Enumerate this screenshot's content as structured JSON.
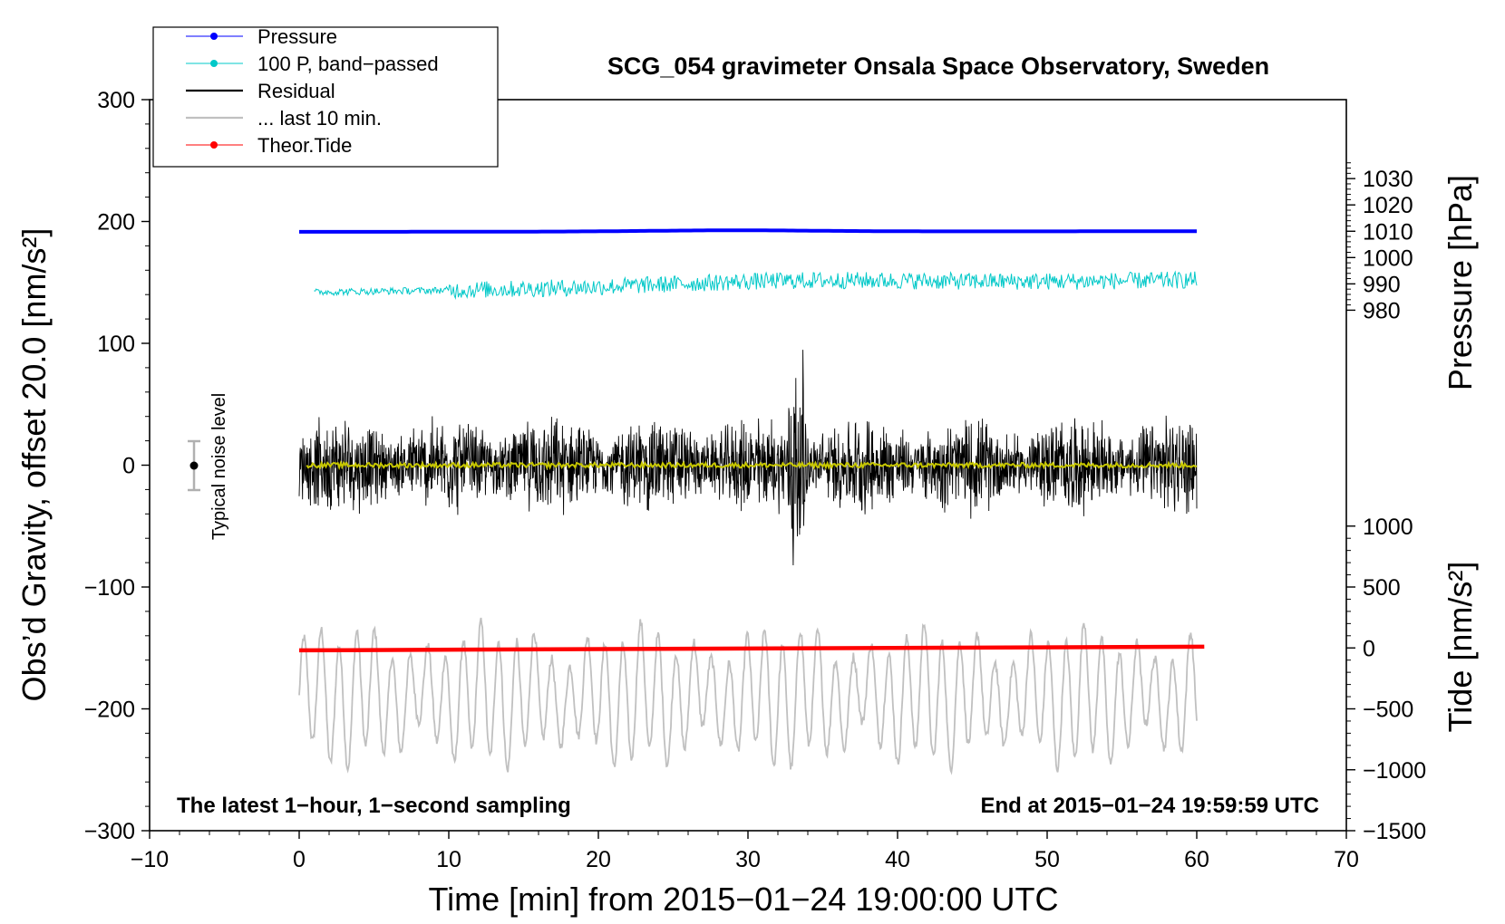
{
  "chart_data": {
    "type": "line",
    "title": "SCG_054 gravimeter Onsala Space Observatory, Sweden",
    "xlabel": "Time [min] from 2015−01−24 19:00:00 UTC",
    "ylabel": "Obs’d Gravity, offset 20.0 [nm/s²]",
    "y2label_pressure": "Pressure [hPa]",
    "y2label_tide": "Tide [nm/s²]",
    "xlim": [
      -10,
      70
    ],
    "ylim": [
      -300,
      300
    ],
    "xticks": [
      -10,
      0,
      10,
      20,
      30,
      40,
      50,
      60,
      70
    ],
    "xtick_labels": [
      "−10",
      "0",
      "10",
      "20",
      "30",
      "40",
      "50",
      "60",
      "70"
    ],
    "yticks": [
      300,
      200,
      100,
      0,
      -100,
      -200,
      -300
    ],
    "ytick_labels": [
      "300",
      "200",
      "100",
      "0",
      "−100",
      "−200",
      "−300"
    ],
    "pressure_axis": {
      "ticks": [
        980,
        990,
        1000,
        1010,
        1020,
        1030
      ],
      "labels": [
        "980",
        "990",
        "1000",
        "1010",
        "1020",
        "1030"
      ],
      "left_value_at": [
        1010,
        192
      ],
      "left_per_hpa": 2.16
    },
    "tide_axis": {
      "ticks": [
        1000,
        500,
        0,
        -500,
        -1000,
        -1500
      ],
      "labels": [
        "1000",
        "500",
        "0",
        "−500",
        "−1000",
        "−1500"
      ],
      "left_value_at": [
        0,
        -150
      ],
      "left_per_unit": 0.1
    },
    "legend": {
      "placement": "top-left",
      "entries": [
        {
          "label": "Pressure",
          "color": "#0000ff",
          "marker": true
        },
        {
          "label": "100 P, band−passed",
          "color": "#00c8c8",
          "marker": true
        },
        {
          "label": "Residual",
          "color": "#000000",
          "marker": false
        },
        {
          "label": "... last 10 min.",
          "color": "#c0c0c0",
          "marker": false
        },
        {
          "label": "Theor.Tide",
          "color": "#ff0000",
          "marker": true
        }
      ]
    },
    "series": [
      {
        "name": "Pressure",
        "color": "#0000ff",
        "x_range": [
          0,
          60
        ],
        "y_start": 191.5,
        "y_end": 192.0,
        "y_bump_at_29": 193.0
      },
      {
        "name": "100 P, band−passed",
        "color": "#00c8c8",
        "x_range": [
          1,
          60
        ],
        "y_start": 142,
        "y_end": 152,
        "y_peak_at_33": 156,
        "noise_amplitude": 7
      },
      {
        "name": "Residual",
        "color": "#000000",
        "x_range": [
          0,
          60
        ],
        "y_mean": 0,
        "typical_amplitude": 30,
        "y_max": 107,
        "y_min": -105
      },
      {
        "name": "Filtered residual",
        "color": "#c8c800",
        "x_range": [
          0,
          60
        ],
        "y_mean": 0,
        "noise_amplitude": 2
      },
      {
        "name": "... last 10 min.",
        "color": "#c0c0c0",
        "x_range": [
          0,
          60
        ],
        "y_mean": -190,
        "y_max": -110,
        "y_min": -252
      },
      {
        "name": "Theor.Tide",
        "color": "#ff0000",
        "x_range": [
          0,
          60.5
        ],
        "y_start": -152,
        "y_end": -149
      }
    ],
    "noise_bar": {
      "label": "Typical noise level",
      "x": -7,
      "center": 0,
      "half_range": 20
    },
    "annotations": {
      "bottom_left": "The latest 1−hour, 1−second sampling",
      "bottom_right": "End at 2015−01−24 19:59:59 UTC"
    }
  }
}
